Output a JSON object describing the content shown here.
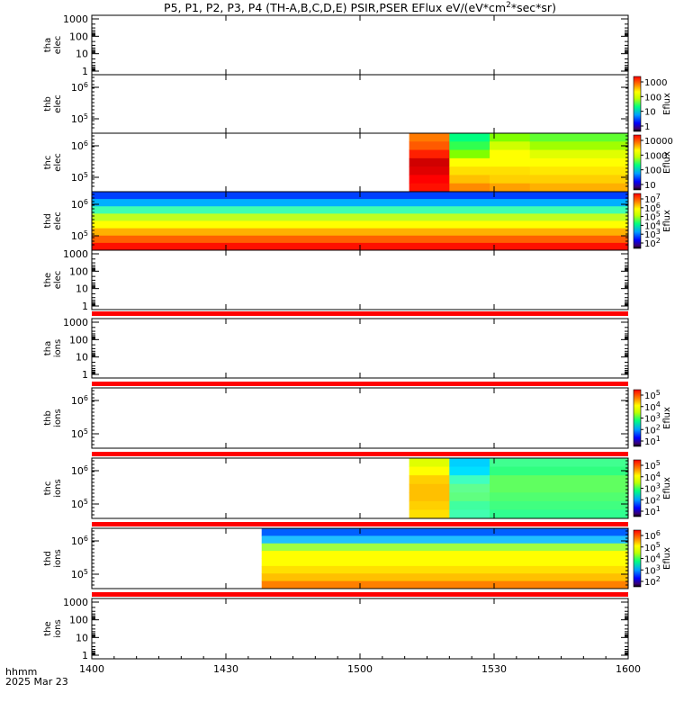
{
  "title": "P5, P1, P2, P3, P4 (TH-A,B,C,D,E) PSIR,PSER EFlux eV/(eV*cm",
  "title_sup": "2",
  "title_end": "*sec*sr)",
  "footer": {
    "label": "hhmm",
    "date": "2025 Mar 23"
  },
  "colors": {
    "red_bar": "#ff0000",
    "axis": "#000000"
  },
  "chart_data": {
    "type": "heatmap",
    "x_ticks": [
      "1400",
      "1430",
      "1500",
      "1530",
      "1600"
    ],
    "x_range_minutes": [
      0,
      120
    ],
    "panels": [
      {
        "id": "tha-elec",
        "ylabel": [
          "tha",
          "elec"
        ],
        "yscale": "linear-decade",
        "ytick_labels": [
          "1000",
          "100",
          "10",
          "1"
        ],
        "has_colorbar": false,
        "red_bar_after": false
      },
      {
        "id": "thb-elec",
        "ylabel": [
          "thb",
          "elec"
        ],
        "yscale": "sci",
        "ytick_labels": [
          "10",
          "10"
        ],
        "ytick_exps": [
          "6",
          "5"
        ],
        "colorbar": {
          "label": "Eflux",
          "ticks": [
            "1000",
            "100",
            "10",
            "1"
          ],
          "sci": false
        },
        "red_bar_after": false
      },
      {
        "id": "thc-elec",
        "ylabel": [
          "thc",
          "elec"
        ],
        "yscale": "sci",
        "ytick_labels": [
          "10",
          "10"
        ],
        "ytick_exps": [
          "6",
          "5"
        ],
        "colorbar": {
          "label": "Eflux",
          "ticks": [
            "10000",
            "1000",
            "100",
            "10"
          ],
          "sci": false
        },
        "data_start_min": 71,
        "data_end_min": 120,
        "columns_rgb_top_to_bottom": [
          {
            "x0": 71,
            "x1": 80,
            "rows": [
              "#ff7a00",
              "#ff5a00",
              "#ff2000",
              "#d00000",
              "#e00000",
              "#ff0000",
              "#ff1000"
            ]
          },
          {
            "x0": 80,
            "x1": 89,
            "rows": [
              "#00ff80",
              "#30ff50",
              "#80ff00",
              "#ffff00",
              "#ffe000",
              "#ffc000",
              "#ff8a00"
            ]
          },
          {
            "x0": 89,
            "x1": 98,
            "rows": [
              "#80ff00",
              "#d0ff00",
              "#ffff00",
              "#ffff00",
              "#ffe000",
              "#ffd000",
              "#ffa000"
            ]
          },
          {
            "x0": 98,
            "x1": 120,
            "rows": [
              "#60ff30",
              "#a0ff00",
              "#e0ff00",
              "#ffff00",
              "#ffe800",
              "#ffd000",
              "#ffb000"
            ]
          }
        ],
        "red_bar_after": false
      },
      {
        "id": "thd-elec",
        "ylabel": [
          "thd",
          "elec"
        ],
        "yscale": "sci",
        "ytick_labels": [
          "10",
          "10"
        ],
        "ytick_exps": [
          "6",
          "5"
        ],
        "colorbar": {
          "label": "Eflux",
          "ticks": [
            "10",
            "10",
            "10",
            "10",
            "10",
            "10"
          ],
          "exps": [
            "7",
            "6",
            "5",
            "4",
            "3",
            "2"
          ],
          "sci": true
        },
        "data_start_min": 0,
        "data_end_min": 120,
        "rows_rgb_top_to_bottom": [
          "#0040ff",
          "#00b0ff",
          "#40ffb0",
          "#c0ff20",
          "#ffff00",
          "#ffb000",
          "#ff6000",
          "#ff1000"
        ],
        "red_bar_after": false
      },
      {
        "id": "the-elec",
        "ylabel": [
          "the",
          "elec"
        ],
        "yscale": "linear-decade",
        "ytick_labels": [
          "1000",
          "100",
          "10",
          "1"
        ],
        "has_colorbar": false,
        "red_bar_after": true
      },
      {
        "id": "tha-ions",
        "ylabel": [
          "tha",
          "ions"
        ],
        "yscale": "linear-decade",
        "ytick_labels": [
          "1000",
          "100",
          "10",
          "1"
        ],
        "has_colorbar": false,
        "red_bar_after": true
      },
      {
        "id": "thb-ions",
        "ylabel": [
          "thb",
          "ions"
        ],
        "yscale": "sci",
        "ytick_labels": [
          "10",
          "10"
        ],
        "ytick_exps": [
          "6",
          "5"
        ],
        "colorbar": {
          "label": "Eflux",
          "ticks": [
            "10",
            "10",
            "10",
            "10",
            "10"
          ],
          "exps": [
            "5",
            "4",
            "3",
            "2",
            "1"
          ],
          "sci": true
        },
        "red_bar_after": true
      },
      {
        "id": "thc-ions",
        "ylabel": [
          "thc",
          "ions"
        ],
        "yscale": "sci",
        "ytick_labels": [
          "10",
          "10"
        ],
        "ytick_exps": [
          "6",
          "5"
        ],
        "colorbar": {
          "label": "Eflux",
          "ticks": [
            "10",
            "10",
            "10",
            "10",
            "10"
          ],
          "exps": [
            "5",
            "4",
            "3",
            "2",
            "1"
          ],
          "sci": true
        },
        "data_start_min": 71,
        "data_end_min": 120,
        "columns_rgb_top_to_bottom": [
          {
            "x0": 71,
            "x1": 80,
            "rows": [
              "#e0ff00",
              "#ffff00",
              "#ffd000",
              "#ffc000",
              "#ffc000",
              "#ffd000",
              "#ffe000"
            ]
          },
          {
            "x0": 80,
            "x1": 89,
            "rows": [
              "#00d0ff",
              "#00e0ff",
              "#40ffc0",
              "#60ff90",
              "#60ff80",
              "#40ffa0",
              "#40ffb0"
            ]
          },
          {
            "x0": 89,
            "x1": 120,
            "rows": [
              "#40ff90",
              "#30ff80",
              "#60ff60",
              "#60ff60",
              "#50ff70",
              "#40ff80",
              "#30ff90"
            ]
          }
        ],
        "red_bar_after": true
      },
      {
        "id": "thd-ions",
        "ylabel": [
          "thd",
          "ions"
        ],
        "yscale": "sci",
        "ytick_labels": [
          "10",
          "10"
        ],
        "ytick_exps": [
          "6",
          "5"
        ],
        "colorbar": {
          "label": "Eflux",
          "ticks": [
            "10",
            "10",
            "10",
            "10",
            "10"
          ],
          "exps": [
            "6",
            "5",
            "4",
            "3",
            "2"
          ],
          "sci": true
        },
        "data_start_min": 38,
        "data_end_min": 120,
        "rows_rgb_top_to_bottom": [
          "#0060ff",
          "#20c0ff",
          "#a0ff40",
          "#ffff00",
          "#ffff00",
          "#ffe000",
          "#ffc000",
          "#ff8000"
        ],
        "red_bar_after": true
      },
      {
        "id": "the-ions",
        "ylabel": [
          "the",
          "ions"
        ],
        "yscale": "linear-decade",
        "ytick_labels": [
          "1000",
          "100",
          "10",
          "1"
        ],
        "has_colorbar": false,
        "red_bar_after": false
      }
    ]
  }
}
